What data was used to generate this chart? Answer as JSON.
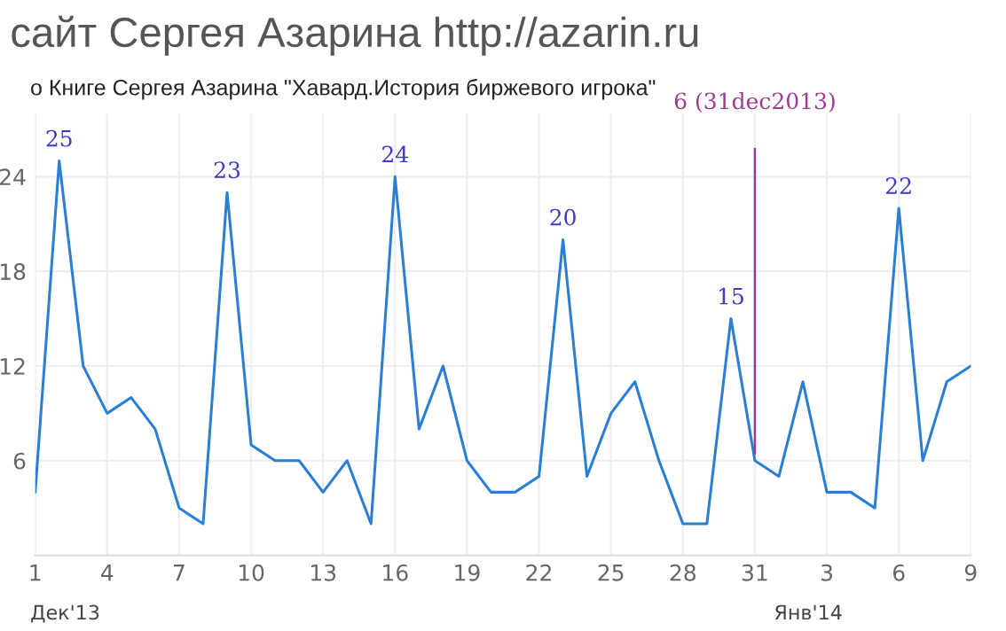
{
  "chart_data": {
    "type": "line",
    "title": "сайт Сергея Азарина http://azarin.ru",
    "subtitle": "о Книге Сергея Азарина \"Хавард.История биржевого игрока\"",
    "x": [
      "2013-12-01",
      "2013-12-02",
      "2013-12-03",
      "2013-12-04",
      "2013-12-05",
      "2013-12-06",
      "2013-12-07",
      "2013-12-08",
      "2013-12-09",
      "2013-12-10",
      "2013-12-11",
      "2013-12-12",
      "2013-12-13",
      "2013-12-14",
      "2013-12-15",
      "2013-12-16",
      "2013-12-17",
      "2013-12-18",
      "2013-12-19",
      "2013-12-20",
      "2013-12-21",
      "2013-12-22",
      "2013-12-23",
      "2013-12-24",
      "2013-12-25",
      "2013-12-26",
      "2013-12-27",
      "2013-12-28",
      "2013-12-29",
      "2013-12-30",
      "2013-12-31",
      "2014-01-01",
      "2014-01-02",
      "2014-01-03",
      "2014-01-04",
      "2014-01-05",
      "2014-01-06",
      "2014-01-07",
      "2014-01-08",
      "2014-01-09"
    ],
    "series": [
      {
        "color": "#2a7fd4",
        "values": [
          4,
          25,
          12,
          9,
          10,
          8,
          3,
          2,
          23,
          7,
          6,
          6,
          4,
          6,
          2,
          24,
          8,
          12,
          6,
          4,
          4,
          5,
          20,
          5,
          9,
          11,
          6,
          2,
          2,
          15,
          6,
          5,
          11,
          4,
          4,
          3,
          22,
          6,
          11,
          12
        ],
        "value_labels": [
          null,
          "25",
          null,
          null,
          null,
          null,
          null,
          null,
          "23",
          null,
          null,
          null,
          null,
          null,
          null,
          "24",
          null,
          null,
          null,
          null,
          null,
          null,
          "20",
          null,
          null,
          null,
          null,
          null,
          null,
          "15",
          null,
          null,
          null,
          null,
          null,
          null,
          "22",
          null,
          null,
          null
        ]
      }
    ],
    "ref_lines": [
      {
        "axis": "x",
        "value": "2013-12-31",
        "label": "6 (31dec2013)",
        "color": "#9b3a8f"
      }
    ],
    "annotations": [
      "Дек'13",
      "Янв'14"
    ],
    "xlim": [
      "2013-12-01",
      "2014-01-09"
    ],
    "xticks": [
      {
        "value": "2013-12-01",
        "label": "1"
      },
      {
        "value": "2013-12-04",
        "label": "4"
      },
      {
        "value": "2013-12-07",
        "label": "7"
      },
      {
        "value": "2013-12-10",
        "label": "10"
      },
      {
        "value": "2013-12-13",
        "label": "13"
      },
      {
        "value": "2013-12-16",
        "label": "16"
      },
      {
        "value": "2013-12-19",
        "label": "19"
      },
      {
        "value": "2013-12-22",
        "label": "22"
      },
      {
        "value": "2013-12-25",
        "label": "25"
      },
      {
        "value": "2013-12-28",
        "label": "28"
      },
      {
        "value": "2013-12-31",
        "label": "31"
      },
      {
        "value": "2014-01-03",
        "label": "3"
      },
      {
        "value": "2014-01-06",
        "label": "6"
      },
      {
        "value": "2014-01-09",
        "label": "9"
      }
    ],
    "ylim": [
      0,
      28
    ],
    "yticks": [
      6,
      12,
      18,
      24
    ],
    "grid": true
  }
}
